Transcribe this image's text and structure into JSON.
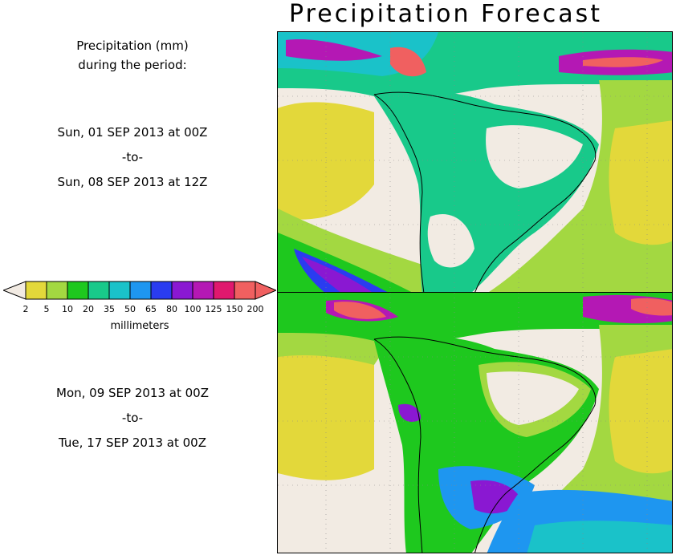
{
  "title": "Precipitation Forecast",
  "info": {
    "line1": "Precipitation (mm)",
    "line2": "during the period:"
  },
  "period1": {
    "start": "Sun, 01 SEP 2013 at 00Z",
    "sep": "-to-",
    "end": "Sun, 08 SEP 2013 at 12Z"
  },
  "period2": {
    "start": "Mon, 09 SEP 2013 at 00Z",
    "sep": "-to-",
    "end": "Tue, 17 SEP 2013 at 00Z"
  },
  "legend": {
    "unit_label": "millimeters",
    "ticks": [
      "2",
      "5",
      "10",
      "20",
      "35",
      "50",
      "65",
      "80",
      "100",
      "125",
      "150",
      "200"
    ],
    "colors": [
      "#e3d83a",
      "#a3d841",
      "#1ec81e",
      "#18c98a",
      "#1ac2c9",
      "#1e96f0",
      "#2a3cf0",
      "#8a18d2",
      "#b418b4",
      "#e0186e",
      "#f06060"
    ],
    "low_color": "#f2ebe3",
    "high_color": "#f06060"
  },
  "map_colors": {
    "background": "#f2ebe3",
    "dry": "#e3d83a",
    "light": "#a3d841",
    "moderate": "#1ec81e",
    "wet": "#18c98a",
    "heavy": "#1ac2c9",
    "very_heavy": "#1e96f0",
    "intense": "#2a3cf0",
    "extreme": "#8a18d2",
    "extreme2": "#b418b4",
    "extreme3": "#e0186e",
    "max": "#f06060"
  }
}
